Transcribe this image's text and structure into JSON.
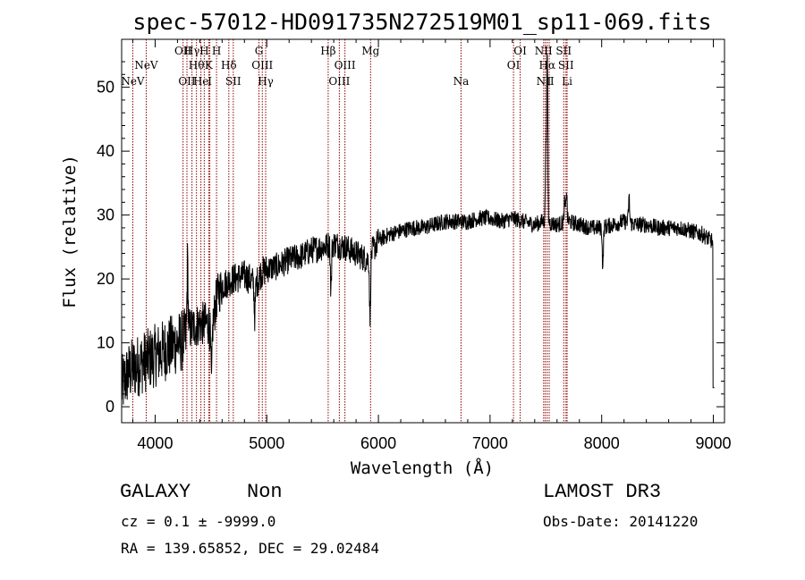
{
  "chart_data": {
    "type": "line",
    "title": "spec-57012-HD091735N272519M01_sp11-069.fits",
    "xlabel": "Wavelength (Å)",
    "ylabel": "Flux (relative)",
    "xlim": [
      3700,
      9100
    ],
    "ylim": [
      -2.5,
      57.5
    ],
    "xticks": [
      4000,
      5000,
      6000,
      7000,
      8000,
      9000
    ],
    "yticks": [
      0,
      10,
      20,
      30,
      40,
      50
    ],
    "line_color": "#8b0000",
    "spectrum_color": "#000000",
    "spectrum_anchors": [
      [
        3700,
        3
      ],
      [
        3750,
        5
      ],
      [
        3800,
        6
      ],
      [
        3900,
        7
      ],
      [
        4000,
        8
      ],
      [
        4100,
        9
      ],
      [
        4200,
        10
      ],
      [
        4270,
        10.5
      ],
      [
        4300,
        12
      ],
      [
        4400,
        13
      ],
      [
        4480,
        13
      ],
      [
        4500,
        11
      ],
      [
        4550,
        17
      ],
      [
        4600,
        19
      ],
      [
        4700,
        20
      ],
      [
        4800,
        20.5
      ],
      [
        4850,
        20
      ],
      [
        4900,
        19
      ],
      [
        4950,
        21
      ],
      [
        5000,
        21.5
      ],
      [
        5100,
        22
      ],
      [
        5200,
        23
      ],
      [
        5300,
        23.5
      ],
      [
        5400,
        24.5
      ],
      [
        5500,
        25
      ],
      [
        5600,
        25.5
      ],
      [
        5700,
        25
      ],
      [
        5800,
        24
      ],
      [
        5900,
        23
      ],
      [
        6000,
        26
      ],
      [
        6100,
        27
      ],
      [
        6200,
        27.5
      ],
      [
        6300,
        28
      ],
      [
        6400,
        28
      ],
      [
        6500,
        28.5
      ],
      [
        6600,
        29
      ],
      [
        6700,
        29
      ],
      [
        6800,
        29
      ],
      [
        6900,
        29.5
      ],
      [
        7000,
        29.5
      ],
      [
        7100,
        29
      ],
      [
        7200,
        29.5
      ],
      [
        7300,
        29
      ],
      [
        7400,
        28.5
      ],
      [
        7470,
        29
      ],
      [
        7600,
        28.5
      ],
      [
        7700,
        29
      ],
      [
        7800,
        28.5
      ],
      [
        7900,
        28
      ],
      [
        8000,
        28
      ],
      [
        8100,
        28.5
      ],
      [
        8200,
        29
      ],
      [
        8300,
        28.5
      ],
      [
        8400,
        28.5
      ],
      [
        8500,
        28
      ],
      [
        8600,
        28
      ],
      [
        8700,
        28
      ],
      [
        8800,
        27.5
      ],
      [
        8900,
        27
      ],
      [
        8980,
        26
      ]
    ],
    "features": [
      {
        "wave": 7512,
        "height": 26
      },
      {
        "wave": 7500,
        "height": 10
      },
      {
        "wave": 7685,
        "height": 5
      },
      {
        "wave": 7668,
        "height": 3
      },
      {
        "wave": 8245,
        "height": 4
      },
      {
        "wave": 8010,
        "height": -6
      },
      {
        "wave": 5925,
        "height": -10
      },
      {
        "wave": 5575,
        "height": -7
      },
      {
        "wave": 4505,
        "height": -8
      },
      {
        "wave": 4892,
        "height": -5
      },
      {
        "wave": 4290,
        "height": 10
      },
      {
        "wave": 9005,
        "height": -8
      }
    ],
    "lines": [
      {
        "wave": 3800,
        "label": "NeV",
        "row": 3
      },
      {
        "wave": 3920,
        "label": "NeV",
        "row": 2
      },
      {
        "wave": 4250,
        "label": "OII",
        "row": 1
      },
      {
        "wave": 4285,
        "label": "OII",
        "row": 3
      },
      {
        "wave": 4330,
        "label": "Hγ",
        "row": 1
      },
      {
        "wave": 4370,
        "label": "Hθ",
        "row": 2
      },
      {
        "wave": 4410,
        "label": "He",
        "row": 3
      },
      {
        "wave": 4440,
        "label": "H",
        "row": 1
      },
      {
        "wave": 4480,
        "label": "K",
        "row": 2
      },
      {
        "wave": 4490,
        "label": "I",
        "row": 3
      },
      {
        "wave": 4550,
        "label": "H",
        "row": 1
      },
      {
        "wave": 4660,
        "label": "Hδ",
        "row": 2
      },
      {
        "wave": 4700,
        "label": "SII",
        "row": 3
      },
      {
        "wave": 4930,
        "label": "G",
        "row": 1
      },
      {
        "wave": 4960,
        "label": "OIII",
        "row": 2
      },
      {
        "wave": 4990,
        "label": "Hγ",
        "row": 3
      },
      {
        "wave": 5550,
        "label": "Hβ",
        "row": 1
      },
      {
        "wave": 5650,
        "label": "OIII",
        "row": 3
      },
      {
        "wave": 5700,
        "label": "OIII",
        "row": 2
      },
      {
        "wave": 5930,
        "label": "Mg",
        "row": 1
      },
      {
        "wave": 6740,
        "label": "Na",
        "row": 3
      },
      {
        "wave": 7210,
        "label": "OI",
        "row": 2
      },
      {
        "wave": 7270,
        "label": "OI",
        "row": 1
      },
      {
        "wave": 7480,
        "label": "NII",
        "row": 1
      },
      {
        "wave": 7495,
        "label": "NII",
        "row": 3
      },
      {
        "wave": 7512,
        "label": "Hα",
        "row": 2
      },
      {
        "wave": 7530,
        "label": "I",
        "row": 3
      },
      {
        "wave": 7660,
        "label": "SII",
        "row": 1
      },
      {
        "wave": 7680,
        "label": "SII",
        "row": 2
      },
      {
        "wave": 7690,
        "label": "Li",
        "row": 3
      }
    ]
  },
  "info": {
    "class_label": "GALAXY",
    "subclass_label": "Non",
    "survey": "LAMOST DR3",
    "redshift": "cz = 0.1 ± -9999.0",
    "obs_date": "Obs-Date: 20141220",
    "coords": "RA = 139.65852, DEC =  29.02484"
  }
}
